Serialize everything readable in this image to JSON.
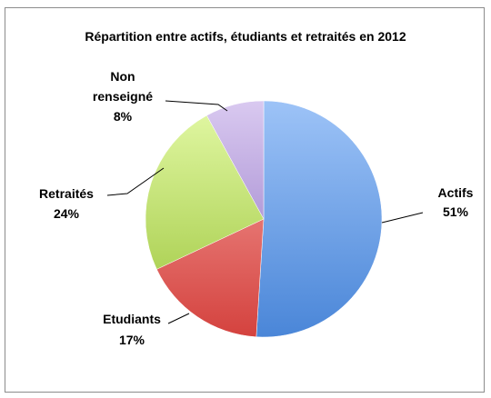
{
  "chart_data": {
    "type": "pie",
    "title": "Répartition entre actifs, étudiants et retraités en 2012",
    "slices": [
      {
        "label": "Actifs",
        "value": 51,
        "value_label": "51%",
        "color_light": "#9dc3f7",
        "color_dark": "#4a86d8"
      },
      {
        "label": "Etudiants",
        "value": 17,
        "value_label": "17%",
        "color_light": "#f7a6a3",
        "color_dark": "#d4423e"
      },
      {
        "label": "Retraités",
        "value": 24,
        "value_label": "24%",
        "color_light": "#e3f9a6",
        "color_dark": "#9bc43a"
      },
      {
        "label": "Non renseigné",
        "label_lines": [
          "Non",
          "renseigné"
        ],
        "value": 8,
        "value_label": "8%",
        "color_light": "#d9c9f0",
        "color_dark": "#8d6fc2"
      }
    ],
    "start_angle_deg": 0,
    "direction": "clockwise",
    "legend": "none"
  }
}
